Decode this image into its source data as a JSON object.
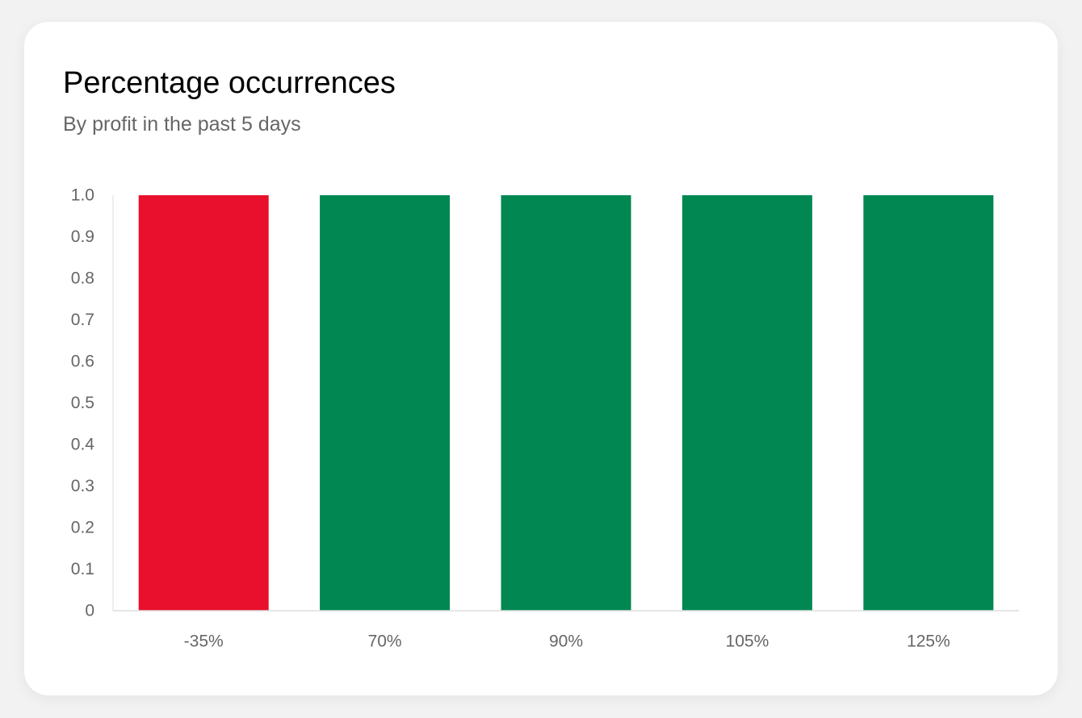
{
  "header": {
    "title": "Percentage occurrences",
    "subtitle": "By profit in the past 5 days"
  },
  "colors": {
    "loss": "#e8102c",
    "profit": "#008752",
    "axis": "#dddddd",
    "tick_text": "#666666"
  },
  "chart_data": {
    "type": "bar",
    "title": "Percentage occurrences",
    "subtitle": "By profit in the past 5 days",
    "categories": [
      "-35%",
      "70%",
      "90%",
      "105%",
      "125%"
    ],
    "values": [
      1.0,
      1.0,
      1.0,
      1.0,
      1.0
    ],
    "bar_colors": [
      "#e8102c",
      "#008752",
      "#008752",
      "#008752",
      "#008752"
    ],
    "ylim": [
      0,
      1.0
    ],
    "yticks": [
      "0",
      "0.1",
      "0.2",
      "0.3",
      "0.4",
      "0.5",
      "0.6",
      "0.7",
      "0.8",
      "0.9",
      "1.0"
    ],
    "grid": false,
    "legend": "none",
    "xlabel": "",
    "ylabel": ""
  }
}
